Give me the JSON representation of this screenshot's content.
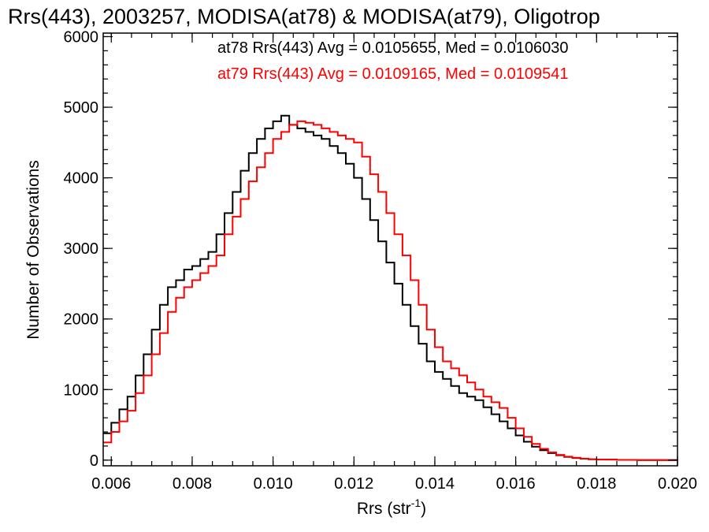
{
  "chart_data": {
    "type": "line",
    "step": true,
    "title": "Rrs(443), 2003257, MODISA(at78) & MODISA(at79), Oligotrop",
    "xlabel": "Rrs (str",
    "xlabel_sup": "-1",
    "xlabel_end": ")",
    "ylabel": "Number of Observations",
    "xlim": [
      0.0058,
      0.02
    ],
    "ylim": [
      -80,
      6050
    ],
    "xticks": [
      0.006,
      0.008,
      0.01,
      0.012,
      0.014,
      0.016,
      0.018,
      0.02
    ],
    "xtick_labels": [
      "0.006",
      "0.008",
      "0.010",
      "0.012",
      "0.014",
      "0.016",
      "0.018",
      "0.020"
    ],
    "yticks": [
      0,
      1000,
      2000,
      3000,
      4000,
      5000,
      6000
    ],
    "ytick_labels": [
      "0",
      "1000",
      "2000",
      "3000",
      "4000",
      "5000",
      "6000"
    ],
    "xminor": 0.0005,
    "yminor": 200,
    "grid": false,
    "legend_position": "top-right",
    "legend": [
      "at78 Rrs(443) Avg = 0.0105655, Med = 0.0106030",
      "at79 Rrs(443) Avg = 0.0109165, Med = 0.0109541"
    ],
    "series": [
      {
        "color": "#000000",
        "x": [
          0.0058,
          0.006,
          0.0062,
          0.0064,
          0.0066,
          0.0068,
          0.007,
          0.0072,
          0.0074,
          0.0076,
          0.0078,
          0.008,
          0.0082,
          0.0084,
          0.0086,
          0.0088,
          0.009,
          0.0092,
          0.0094,
          0.0096,
          0.0098,
          0.01,
          0.0102,
          0.0104,
          0.0106,
          0.0108,
          0.011,
          0.0112,
          0.0114,
          0.0116,
          0.0118,
          0.012,
          0.0122,
          0.0124,
          0.0126,
          0.0128,
          0.013,
          0.0132,
          0.0134,
          0.0136,
          0.0138,
          0.014,
          0.0142,
          0.0144,
          0.0146,
          0.0148,
          0.015,
          0.0152,
          0.0154,
          0.0156,
          0.0158,
          0.016,
          0.0162,
          0.0164,
          0.0166,
          0.0168,
          0.017,
          0.0172,
          0.0174,
          0.0176,
          0.0178,
          0.018,
          0.0185,
          0.019,
          0.0195,
          0.02
        ],
        "y": [
          380,
          530,
          720,
          900,
          1200,
          1500,
          1850,
          2200,
          2450,
          2550,
          2700,
          2750,
          2850,
          2950,
          3200,
          3500,
          3800,
          4100,
          4350,
          4550,
          4700,
          4800,
          4880,
          4750,
          4700,
          4650,
          4600,
          4550,
          4450,
          4350,
          4200,
          4000,
          3700,
          3400,
          3100,
          2800,
          2500,
          2200,
          1900,
          1650,
          1400,
          1250,
          1150,
          1050,
          950,
          900,
          850,
          750,
          650,
          550,
          450,
          350,
          260,
          190,
          140,
          100,
          70,
          45,
          30,
          20,
          12,
          8,
          4,
          2,
          1,
          0
        ]
      },
      {
        "color": "#ff0000",
        "x": [
          0.0058,
          0.006,
          0.0062,
          0.0064,
          0.0066,
          0.0068,
          0.007,
          0.0072,
          0.0074,
          0.0076,
          0.0078,
          0.008,
          0.0082,
          0.0084,
          0.0086,
          0.0088,
          0.009,
          0.0092,
          0.0094,
          0.0096,
          0.0098,
          0.01,
          0.0102,
          0.0104,
          0.0106,
          0.0108,
          0.011,
          0.0112,
          0.0114,
          0.0116,
          0.0118,
          0.012,
          0.0122,
          0.0124,
          0.0126,
          0.0128,
          0.013,
          0.0132,
          0.0134,
          0.0136,
          0.0138,
          0.014,
          0.0142,
          0.0144,
          0.0146,
          0.0148,
          0.015,
          0.0152,
          0.0154,
          0.0156,
          0.0158,
          0.016,
          0.0162,
          0.0164,
          0.0166,
          0.0168,
          0.017,
          0.0172,
          0.0174,
          0.0176,
          0.0178,
          0.018,
          0.0185,
          0.019,
          0.0195,
          0.02
        ],
        "y": [
          250,
          400,
          550,
          700,
          950,
          1200,
          1500,
          1800,
          2100,
          2300,
          2450,
          2550,
          2650,
          2750,
          2900,
          3200,
          3450,
          3700,
          3950,
          4150,
          4350,
          4550,
          4650,
          4750,
          4800,
          4780,
          4750,
          4700,
          4650,
          4600,
          4550,
          4500,
          4300,
          4050,
          3800,
          3500,
          3200,
          2900,
          2550,
          2200,
          1850,
          1600,
          1400,
          1300,
          1200,
          1100,
          1000,
          900,
          820,
          740,
          600,
          450,
          330,
          230,
          160,
          110,
          75,
          50,
          35,
          22,
          14,
          9,
          4,
          2,
          1,
          0
        ]
      }
    ]
  }
}
